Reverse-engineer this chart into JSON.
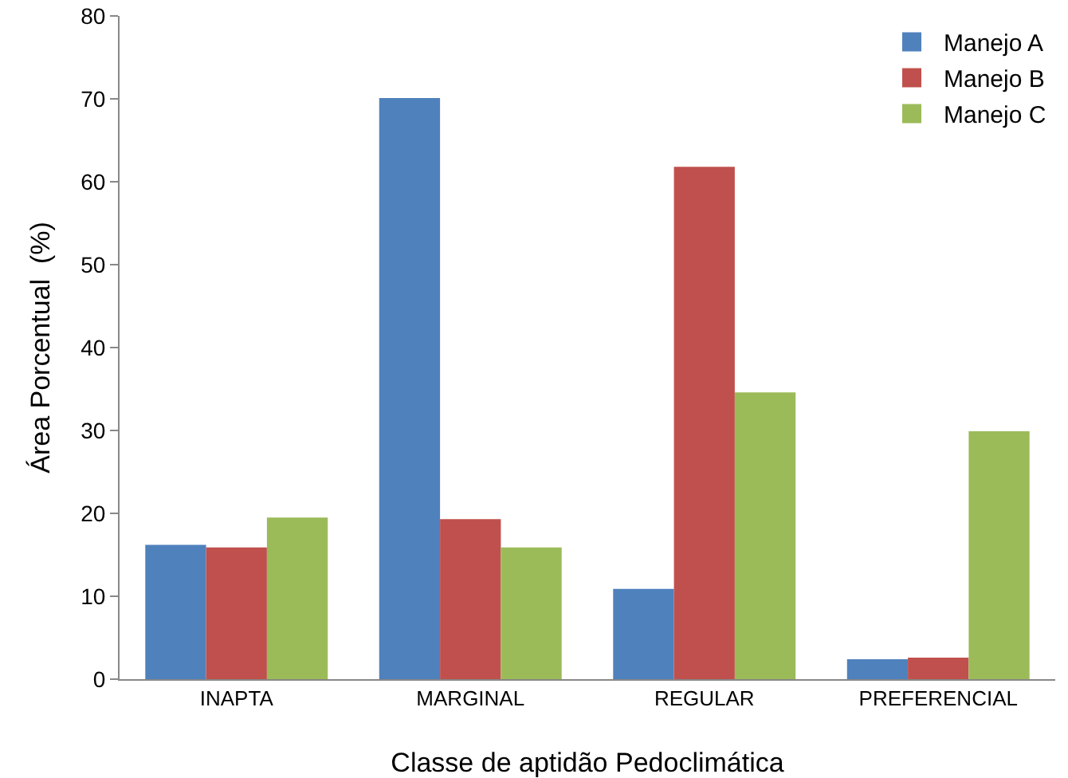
{
  "chart_data": {
    "type": "bar",
    "xlabel": "Classe de aptidão Pedoclimática",
    "ylabel": "Área Porcentual  (%)",
    "categories": [
      "INAPTA",
      "MARGINAL",
      "REGULAR",
      "PREFERENCIAL"
    ],
    "series": [
      {
        "name": "Manejo A",
        "color": "#4f81bd",
        "values": [
          16.2,
          70.1,
          10.9,
          2.4
        ]
      },
      {
        "name": "Manejo B",
        "color": "#c0504d",
        "values": [
          15.9,
          19.3,
          61.8,
          2.6
        ]
      },
      {
        "name": "Manejo C",
        "color": "#9bbb59",
        "values": [
          19.5,
          15.9,
          34.6,
          29.9
        ]
      }
    ],
    "ylim": [
      0,
      80
    ],
    "yticks": [
      0,
      10,
      20,
      30,
      40,
      50,
      60,
      70,
      80
    ],
    "grid": false,
    "legend": "top right"
  }
}
